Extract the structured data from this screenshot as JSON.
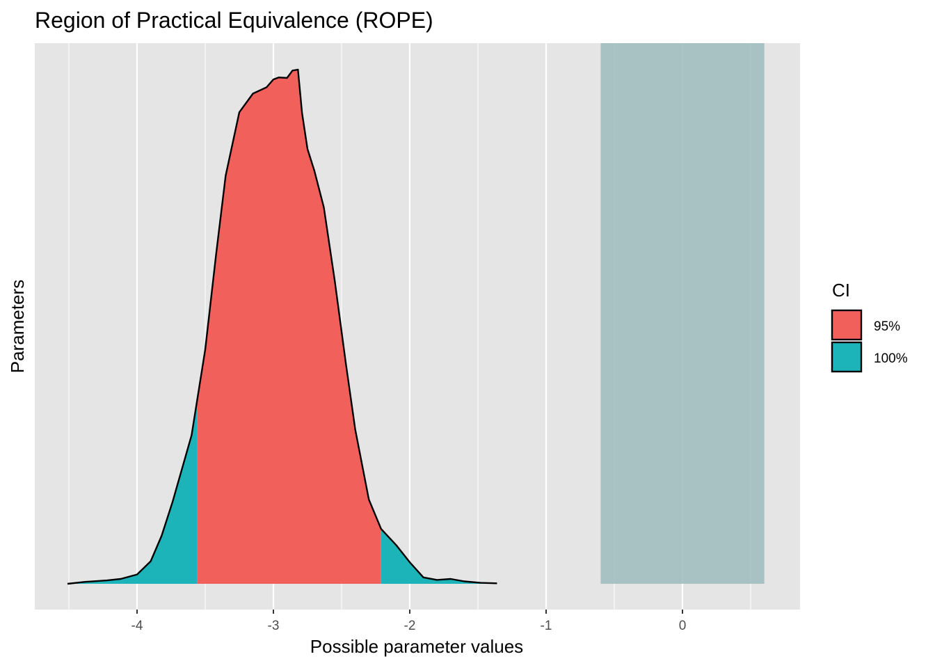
{
  "chart_data": {
    "type": "area",
    "title": "Region of Practical Equivalence (ROPE)",
    "xlabel": "Possible parameter values",
    "ylabel": "Parameters",
    "xlim": [
      -4.5,
      0.85
    ],
    "x_ticks": [
      -4,
      -3,
      -2,
      -1,
      0
    ],
    "x_tick_labels": [
      "-4",
      "-3",
      "-2",
      "-1",
      "0"
    ],
    "x_minor_ticks": [
      -4.5,
      -3.5,
      -2.5,
      -1.5,
      -0.5,
      0.5
    ],
    "grid": "vertical major and minor",
    "rope": {
      "low": -0.6,
      "high": 0.6,
      "color": "#9dbbbd"
    },
    "ci": {
      "low": -3.56,
      "high": -2.21,
      "inner_label": "95%",
      "outer_label": "100%"
    },
    "density": {
      "x": [
        -4.51,
        -4.38,
        -4.22,
        -4.12,
        -4.0,
        -3.9,
        -3.82,
        -3.74,
        -3.67,
        -3.6,
        -3.5,
        -3.42,
        -3.35,
        -3.25,
        -3.15,
        -3.05,
        -3.0,
        -2.96,
        -2.9,
        -2.86,
        -2.82,
        -2.79,
        -2.75,
        -2.7,
        -2.63,
        -2.55,
        -2.47,
        -2.4,
        -2.3,
        -2.21,
        -2.1,
        -2.0,
        -1.9,
        -1.8,
        -1.7,
        -1.6,
        -1.48,
        -1.36
      ],
      "y": [
        0.0,
        0.004,
        0.007,
        0.01,
        0.019,
        0.046,
        0.098,
        0.167,
        0.235,
        0.303,
        0.478,
        0.673,
        0.833,
        0.962,
        1.0,
        1.013,
        1.029,
        1.033,
        1.032,
        1.047,
        1.049,
        0.96,
        0.887,
        0.843,
        0.768,
        0.618,
        0.452,
        0.315,
        0.172,
        0.112,
        0.079,
        0.044,
        0.013,
        0.008,
        0.01,
        0.005,
        0.002,
        0.001
      ]
    },
    "legend": {
      "title": "CI",
      "position": "right",
      "entries": [
        {
          "label": "95%",
          "color": "#f2605c"
        },
        {
          "label": "100%",
          "color": "#1cb4b8"
        }
      ]
    },
    "colors": {
      "panel": "#e5e5e5",
      "grid": "#ffffff",
      "outline": "#000000"
    }
  }
}
